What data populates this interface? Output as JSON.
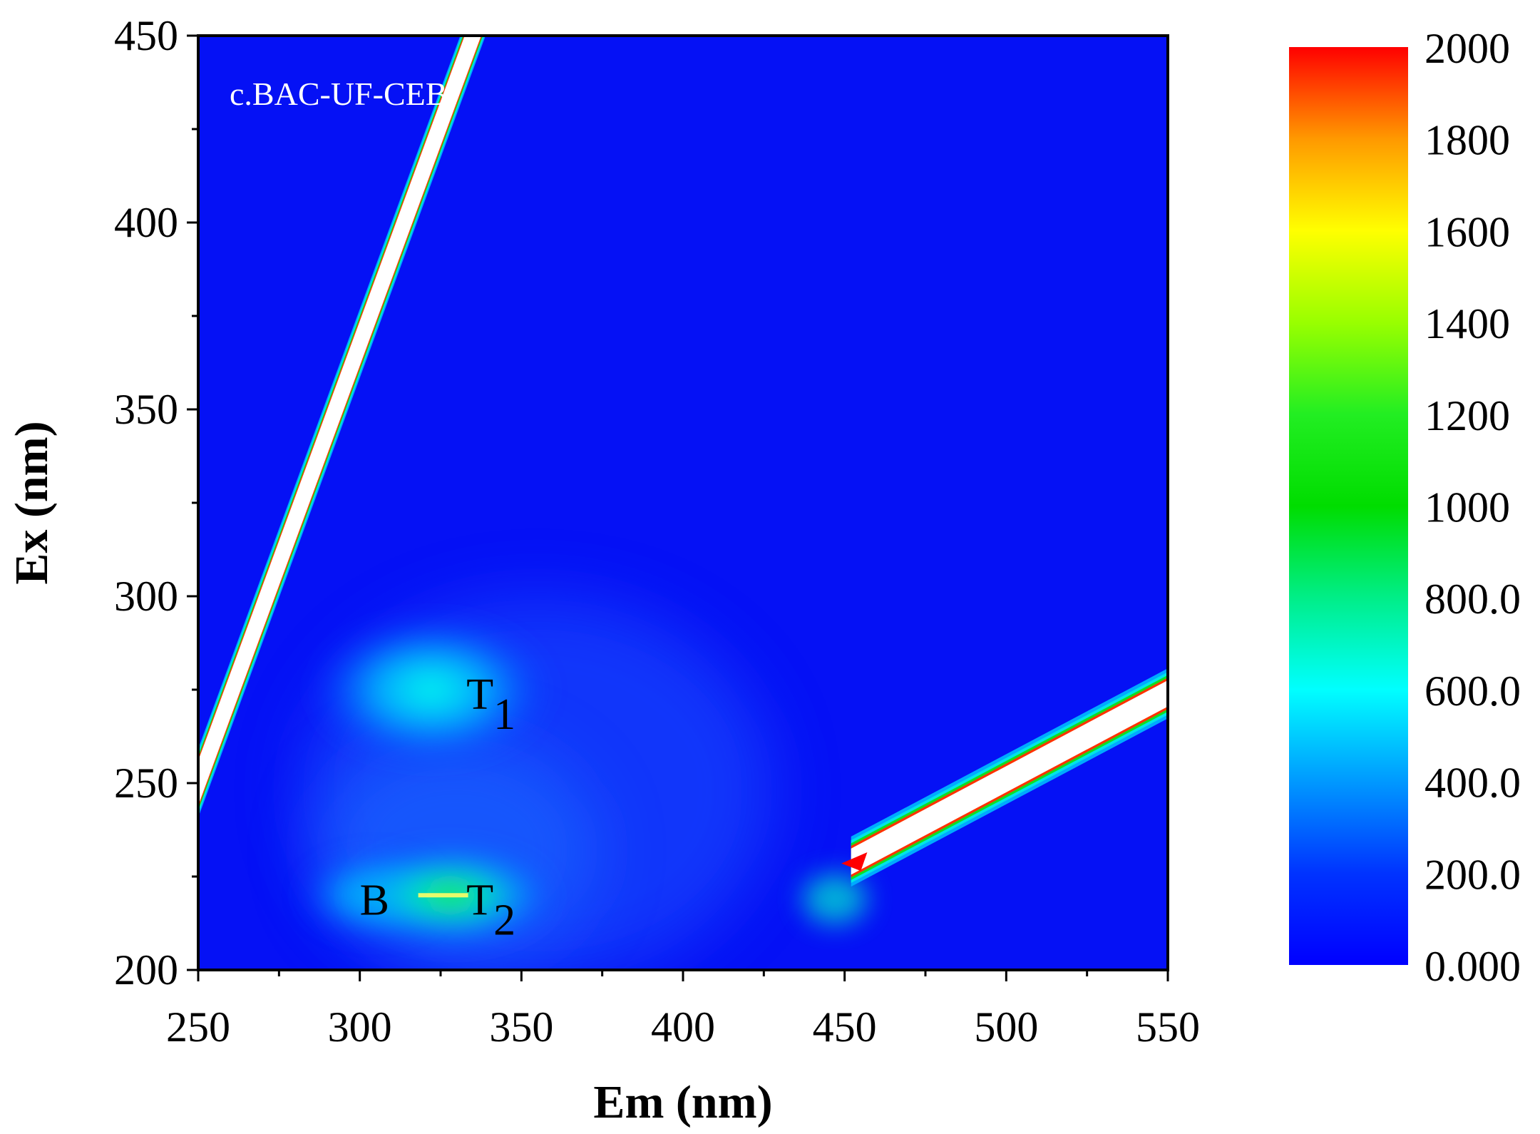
{
  "chart_data": {
    "type": "heatmap",
    "xlabel": "Em (nm)",
    "ylabel": "Ex (nm)",
    "xlim": [
      250,
      550
    ],
    "ylim": [
      200,
      450
    ],
    "x_ticks": [
      "250",
      "300",
      "350",
      "400",
      "450",
      "500",
      "550"
    ],
    "y_ticks": [
      "200",
      "250",
      "300",
      "350",
      "400",
      "450"
    ],
    "panel_label": "c.BAC-UF-CEB",
    "colorbar": {
      "range": [
        0,
        2000
      ],
      "tick_labels": [
        "0.000",
        "200.0",
        "400.0",
        "600.0",
        "800.0",
        "1000",
        "1200",
        "1400",
        "1600",
        "1800",
        "2000"
      ],
      "colors": [
        "#0000ff",
        "#0033ff",
        "#0099ff",
        "#00ffff",
        "#00ee88",
        "#00dd00",
        "#22ee22",
        "#99ff00",
        "#ffff00",
        "#ff9900",
        "#ff0000"
      ]
    },
    "background_color": "#0511f5",
    "scatter_bands": [
      {
        "name": "rayleigh-1st",
        "em": [
          250,
          335
        ],
        "ex_center": [
          250,
          450
        ],
        "half_width_nm": 6
      },
      {
        "name": "rayleigh-2nd",
        "em": [
          452,
          550
        ],
        "ex_center": [
          229,
          274
        ],
        "half_width_nm": 3.5
      }
    ],
    "peaks": [
      {
        "label": "T",
        "sub": "1",
        "em": 322,
        "ex": 275,
        "intensity": 600
      },
      {
        "label": "B",
        "sub": "",
        "em": 305,
        "ex": 220,
        "intensity": 950
      },
      {
        "label": "T",
        "sub": "2",
        "em": 328,
        "ex": 220,
        "intensity": 1300
      }
    ],
    "annotations": [
      {
        "text": "T",
        "sub": "1",
        "em": 333,
        "ex": 274
      },
      {
        "text": "B",
        "sub": "",
        "em": 300,
        "ex": 219
      },
      {
        "text": "T",
        "sub": "2",
        "em": 333,
        "ex": 219
      }
    ]
  }
}
